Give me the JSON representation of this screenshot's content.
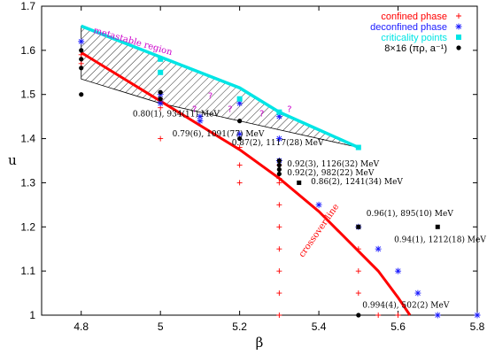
{
  "chart_data": {
    "type": "scatter",
    "xlabel": "β",
    "ylabel": "u",
    "xlim": [
      4.7,
      5.8
    ],
    "ylim": [
      1.0,
      1.7
    ],
    "xticks": [
      "4.8",
      "5",
      "5.2",
      "5.4",
      "5.6",
      "5.8"
    ],
    "yticks": [
      "1",
      "1.1",
      "1.2",
      "1.3",
      "1.4",
      "1.5",
      "1.6",
      "1.7"
    ],
    "legend_position": "top-right",
    "legend": [
      {
        "label": "confined phase",
        "color": "#ff0000",
        "marker": "plus"
      },
      {
        "label": "deconfined phase",
        "color": "#1a1aff",
        "marker": "star"
      },
      {
        "label": "criticality points",
        "color": "#00e5e5",
        "marker": "square"
      },
      {
        "label": "8×16  (πρ, a⁻¹)",
        "color": "#000000",
        "marker": "dot"
      }
    ],
    "series": [
      {
        "name": "confined phase",
        "color": "#ff0000",
        "marker": "plus",
        "points": [
          [
            4.8,
            1.59
          ],
          [
            4.8,
            1.57
          ],
          [
            5.0,
            1.49
          ],
          [
            5.0,
            1.47
          ],
          [
            5.0,
            1.4
          ],
          [
            5.2,
            1.38
          ],
          [
            5.2,
            1.34
          ],
          [
            5.2,
            1.3
          ],
          [
            5.3,
            1.34
          ],
          [
            5.3,
            1.31
          ],
          [
            5.3,
            1.3
          ],
          [
            5.3,
            1.25
          ],
          [
            5.3,
            1.2
          ],
          [
            5.3,
            1.15
          ],
          [
            5.3,
            1.1
          ],
          [
            5.3,
            1.05
          ],
          [
            5.3,
            1.0
          ],
          [
            5.5,
            1.15
          ],
          [
            5.5,
            1.1
          ],
          [
            5.5,
            1.05
          ],
          [
            5.55,
            1.0
          ],
          [
            5.6,
            1.0
          ]
        ]
      },
      {
        "name": "deconfined phase",
        "color": "#1a1aff",
        "marker": "star",
        "points": [
          [
            4.8,
            1.62
          ],
          [
            5.0,
            1.5
          ],
          [
            5.0,
            1.48
          ],
          [
            5.1,
            1.45
          ],
          [
            5.1,
            1.44
          ],
          [
            5.2,
            1.48
          ],
          [
            5.2,
            1.41
          ],
          [
            5.3,
            1.45
          ],
          [
            5.3,
            1.4
          ],
          [
            5.3,
            1.35
          ],
          [
            5.4,
            1.25
          ],
          [
            5.5,
            1.2
          ],
          [
            5.55,
            1.15
          ],
          [
            5.6,
            1.1
          ],
          [
            5.65,
            1.05
          ],
          [
            5.7,
            1.0
          ],
          [
            5.8,
            1.0
          ]
        ]
      },
      {
        "name": "criticality points",
        "color": "#00e5e5",
        "marker": "square",
        "points": [
          [
            5.0,
            1.58
          ],
          [
            5.0,
            1.55
          ],
          [
            5.2,
            1.49
          ],
          [
            5.3,
            1.46
          ],
          [
            5.5,
            1.38
          ]
        ]
      },
      {
        "name": "8×16  (πρ, a⁻¹)",
        "color": "#000000",
        "marker": "dot",
        "points": [
          [
            4.8,
            1.6
          ],
          [
            4.8,
            1.58
          ],
          [
            4.8,
            1.56
          ],
          [
            4.8,
            1.5
          ],
          [
            5.0,
            1.505
          ],
          [
            5.0,
            1.49
          ],
          [
            5.2,
            1.44
          ],
          [
            5.2,
            1.4
          ],
          [
            5.3,
            1.35
          ],
          [
            5.3,
            1.34
          ],
          [
            5.3,
            1.33
          ],
          [
            5.3,
            1.32
          ],
          [
            5.5,
            1.0
          ]
        ]
      },
      {
        "name": "",
        "color": "#000000",
        "marker": "square-filled",
        "points": [
          [
            5.35,
            1.3
          ],
          [
            5.5,
            1.2
          ],
          [
            5.7,
            1.2
          ]
        ]
      }
    ],
    "crossover_line": [
      [
        4.8,
        1.595
      ],
      [
        5.0,
        1.485
      ],
      [
        5.2,
        1.375
      ],
      [
        5.3,
        1.31
      ],
      [
        5.4,
        1.235
      ],
      [
        5.5,
        1.145
      ],
      [
        5.55,
        1.1
      ],
      [
        5.6,
        1.04
      ],
      [
        5.63,
        1.0
      ]
    ],
    "band_upper": [
      [
        4.8,
        1.655
      ],
      [
        5.0,
        1.585
      ],
      [
        5.2,
        1.515
      ],
      [
        5.3,
        1.46
      ],
      [
        5.4,
        1.42
      ],
      [
        5.5,
        1.38
      ]
    ],
    "band_lower": [
      [
        4.8,
        1.535
      ],
      [
        5.0,
        1.48
      ],
      [
        5.1,
        1.46
      ],
      [
        5.2,
        1.44
      ],
      [
        5.3,
        1.42
      ],
      [
        5.5,
        1.38
      ]
    ],
    "question_marks": [
      [
        5.08,
        1.46
      ],
      [
        5.12,
        1.49
      ],
      [
        5.17,
        1.46
      ],
      [
        5.25,
        1.45
      ],
      [
        5.32,
        1.46
      ]
    ],
    "region_label": "metastable region",
    "line_label": "crossover line",
    "annotations": [
      {
        "text": "0.80(1), 934(11) MeV",
        "x": 4.93,
        "y": 1.45
      },
      {
        "text": "0.79(6), 1091(77) MeV",
        "x": 5.03,
        "y": 1.405
      },
      {
        "text": "0.87(2), 1117(28) MeV",
        "x": 5.18,
        "y": 1.385
      },
      {
        "text": "0.92(3), 1126(32) MeV",
        "x": 5.32,
        "y": 1.337
      },
      {
        "text": "0.92(2), 982(22) MeV",
        "x": 5.32,
        "y": 1.317
      },
      {
        "text": "0.86(2), 1241(34) MeV",
        "x": 5.38,
        "y": 1.297
      },
      {
        "text": "0.96(1), 895(10) MeV",
        "x": 5.52,
        "y": 1.225
      },
      {
        "text": "0.94(1), 1212(18) MeV",
        "x": 5.59,
        "y": 1.165
      },
      {
        "text": "0.994(4), 502(2) MeV",
        "x": 5.51,
        "y": 1.017
      }
    ]
  }
}
